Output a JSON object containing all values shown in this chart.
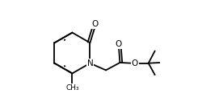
{
  "bg_color": "#ffffff",
  "line_color": "#000000",
  "lw": 1.3,
  "fs": 7.0,
  "figsize": [
    2.5,
    1.32
  ],
  "dpi": 100,
  "xlim": [
    0.0,
    1.0
  ],
  "ylim": [
    0.05,
    0.95
  ]
}
